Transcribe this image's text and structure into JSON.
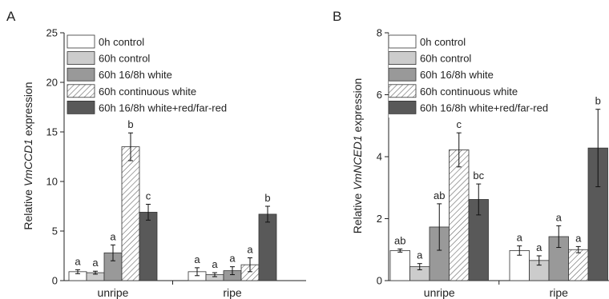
{
  "colors": {
    "0h control": "#ffffff",
    "60h control": "#cccccc",
    "60h 16/8h white": "#999999",
    "60h continuous white": "hatched",
    "60h 16/8h white+red/far-red": "#595959"
  },
  "chart_data": [
    {
      "type": "bar",
      "panel": "A",
      "ylabel_prefix": "Relative ",
      "ylabel_gene": "VmCCD1",
      "ylabel_suffix": " expression",
      "ylim": [
        0,
        25
      ],
      "yticks": [
        0,
        5,
        10,
        15,
        20,
        25
      ],
      "categories": [
        "unripe",
        "ripe"
      ],
      "series": [
        {
          "name": "0h control",
          "values": [
            0.9,
            0.9
          ],
          "errors": [
            0.2,
            0.4
          ],
          "sig": [
            "a",
            "a"
          ]
        },
        {
          "name": "60h control",
          "values": [
            0.8,
            0.6
          ],
          "errors": [
            0.15,
            0.2
          ],
          "sig": [
            "a",
            "a"
          ]
        },
        {
          "name": "60h 16/8h white",
          "values": [
            2.8,
            1.0
          ],
          "errors": [
            0.8,
            0.4
          ],
          "sig": [
            "a",
            "a"
          ]
        },
        {
          "name": "60h continuous white",
          "values": [
            13.5,
            1.6
          ],
          "errors": [
            1.4,
            0.7
          ],
          "sig": [
            "b",
            "a"
          ]
        },
        {
          "name": "60h 16/8h white+red/far-red",
          "values": [
            6.9,
            6.7
          ],
          "errors": [
            0.8,
            0.8
          ],
          "sig": [
            "c",
            "b"
          ]
        }
      ],
      "legend": [
        "0h control",
        "60h control",
        "60h 16/8h white",
        "60h continuous white",
        "60h 16/8h white+red/far-red"
      ]
    },
    {
      "type": "bar",
      "panel": "B",
      "ylabel_prefix": "Relative ",
      "ylabel_gene": "VmNCED1",
      "ylabel_suffix": " expression",
      "ylim": [
        0,
        8
      ],
      "yticks": [
        0,
        2,
        4,
        6,
        8
      ],
      "categories": [
        "unripe",
        "ripe"
      ],
      "series": [
        {
          "name": "0h control",
          "values": [
            0.97,
            0.97
          ],
          "errors": [
            0.05,
            0.15
          ],
          "sig": [
            "ab",
            "a"
          ]
        },
        {
          "name": "60h control",
          "values": [
            0.45,
            0.65
          ],
          "errors": [
            0.1,
            0.15
          ],
          "sig": [
            "a",
            "a"
          ]
        },
        {
          "name": "60h 16/8h white",
          "values": [
            1.73,
            1.42
          ],
          "errors": [
            0.75,
            0.35
          ],
          "sig": [
            "ab",
            "a"
          ]
        },
        {
          "name": "60h continuous white",
          "values": [
            4.22,
            1.0
          ],
          "errors": [
            0.55,
            0.1
          ],
          "sig": [
            "c",
            "a"
          ]
        },
        {
          "name": "60h 16/8h white+red/far-red",
          "values": [
            2.62,
            4.28
          ],
          "errors": [
            0.5,
            1.25
          ],
          "sig": [
            "bc",
            "b"
          ]
        }
      ],
      "legend": [
        "0h control",
        "60h control",
        "60h 16/8h white",
        "60h continuous white",
        "60h 16/8h white+red/far-red"
      ]
    }
  ]
}
